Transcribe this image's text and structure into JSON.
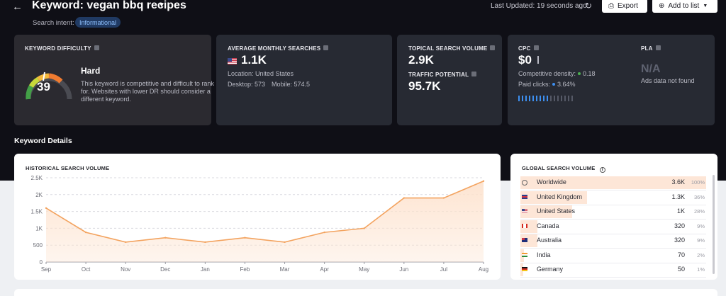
{
  "header": {
    "back_icon": "←",
    "keyword_title": "Keyword: vegan bbq recipes",
    "last_updated": "Last Updated: 19 seconds ago",
    "export_label": "Export",
    "add_to_list_label": "Add to list",
    "search_intent_label": "Search intent:",
    "search_intent_value": "Informational"
  },
  "kd": {
    "label": "KEYWORD DIFFICULTY",
    "value": "39",
    "level": "Hard",
    "description": "This keyword is competitive and difficult to rank for. Websites with lower DR should consider a different keyword."
  },
  "ams": {
    "label": "AVERAGE MONTHLY SEARCHES",
    "value": "1.1K",
    "location": "Location: United States",
    "desktop": "Desktop: 573",
    "mobile": "Mobile: 574.5"
  },
  "tsv": {
    "label": "TOPICAL SEARCH VOLUME",
    "value": "2.9K",
    "tp_label": "TRAFFIC POTENTIAL",
    "tp_value": "95.7K"
  },
  "cpc": {
    "label": "CPC",
    "value": "$0",
    "competitive_density_label": "Competitive density:",
    "competitive_density_value": "0.18",
    "paid_clicks_label": "Paid clicks:",
    "paid_clicks_value": "3.64%",
    "pla_label": "PLA",
    "pla_value": "N/A",
    "pla_note": "Ads data not found"
  },
  "section_title": "Keyword Details",
  "historical": {
    "title": "HISTORICAL SEARCH VOLUME"
  },
  "chart_data": {
    "type": "area",
    "title": "HISTORICAL SEARCH VOLUME",
    "categories": [
      "Sep",
      "Oct",
      "Nov",
      "Dec",
      "Jan",
      "Feb",
      "Mar",
      "Apr",
      "May",
      "Jun",
      "Jul",
      "Aug"
    ],
    "values": [
      1600,
      880,
      590,
      720,
      590,
      720,
      590,
      880,
      1000,
      1900,
      1900,
      2400
    ],
    "y_ticks": [
      "0",
      "500",
      "1K",
      "1.5K",
      "2K",
      "2.5K"
    ],
    "ylim": [
      0,
      2500
    ],
    "grid": true,
    "color": "#f3a35f",
    "fill": "#fde3cf"
  },
  "global": {
    "title": "GLOBAL SEARCH VOLUME",
    "rows": [
      {
        "name": "Worldwide",
        "volume": "3.6K",
        "percent": "100%",
        "share": 1.0,
        "flag": "globe"
      },
      {
        "name": "United Kingdom",
        "volume": "1.3K",
        "percent": "36%",
        "share": 0.36,
        "flag": "uk"
      },
      {
        "name": "United States",
        "volume": "1K",
        "percent": "28%",
        "share": 0.28,
        "flag": "us"
      },
      {
        "name": "Canada",
        "volume": "320",
        "percent": "9%",
        "share": 0.09,
        "flag": "ca"
      },
      {
        "name": "Australia",
        "volume": "320",
        "percent": "9%",
        "share": 0.09,
        "flag": "au"
      },
      {
        "name": "India",
        "volume": "70",
        "percent": "2%",
        "share": 0.02,
        "flag": "in"
      },
      {
        "name": "Germany",
        "volume": "50",
        "percent": "1%",
        "share": 0.01,
        "flag": "de"
      }
    ]
  },
  "colors": {
    "accent_blue": "#3d8ff0",
    "kd_hard": "#f08a3c",
    "chart_line": "#f3a35f"
  }
}
